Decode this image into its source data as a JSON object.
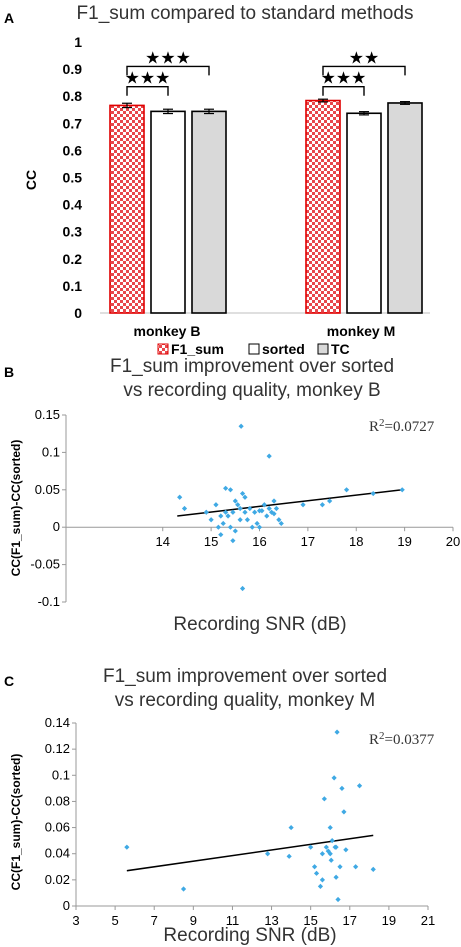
{
  "colors": {
    "bar_f1_fill": "#e8474c",
    "bar_f1_edge": "#e00000",
    "bar_sorted_fill": "#ffffff",
    "bar_tc_fill": "#d9d9d9",
    "bar_edge": "#000000",
    "scatter_point": "#3fa9e4",
    "trendline": "#000000"
  },
  "chart_data": [
    {
      "type": "bar",
      "panel": "A",
      "title": "F1_sum compared to standard methods",
      "ylabel": "CC",
      "xlabel": "",
      "categories": [
        "monkey B",
        "monkey M"
      ],
      "series": [
        {
          "name": "F1_sum",
          "values": [
            0.766,
            0.784
          ],
          "errors": [
            0.008,
            0.005
          ],
          "pattern": "red-checker"
        },
        {
          "name": "sorted",
          "values": [
            0.744,
            0.737
          ],
          "errors": [
            0.008,
            0.006
          ],
          "pattern": "white"
        },
        {
          "name": "TC",
          "values": [
            0.744,
            0.775
          ],
          "errors": [
            0.008,
            0.005
          ],
          "pattern": "gray"
        }
      ],
      "ylim": [
        0,
        1
      ],
      "yticks": [
        "0",
        "0.1",
        "0.2",
        "0.3",
        "0.4",
        "0.5",
        "0.6",
        "0.7",
        "0.8",
        "0.9",
        "1"
      ],
      "grid": false,
      "legend_position": "bottom",
      "significance": [
        {
          "category": 0,
          "from_series": 0,
          "to_series": 1,
          "label": "★★★",
          "level": 0.835
        },
        {
          "category": 0,
          "from_series": 0,
          "to_series": 2,
          "label": "★★★",
          "level": 0.91
        },
        {
          "category": 1,
          "from_series": 0,
          "to_series": 1,
          "label": "★★★",
          "level": 0.835
        },
        {
          "category": 1,
          "from_series": 0,
          "to_series": 2,
          "label": "★★",
          "level": 0.91
        }
      ]
    },
    {
      "type": "scatter",
      "panel": "B",
      "title": "F1_sum improvement over sorted",
      "subtitle": "vs recording quality, monkey B",
      "xlabel": "Recording SNR (dB)",
      "ylabel": "CC(F1_sum)-CC(sorted)",
      "xlim": [
        12,
        20
      ],
      "ylim": [
        -0.1,
        0.15
      ],
      "xticks": [
        "14",
        "15",
        "16",
        "17",
        "18",
        "19",
        "20"
      ],
      "yticks": [
        "-0.1",
        "-0.05",
        "0",
        "0.05",
        "0.1",
        "0.15"
      ],
      "grid": false,
      "r2_label": "R",
      "r2_sup": "2",
      "r2_value": "=0.0727",
      "trendline": {
        "x": [
          14.3,
          18.95
        ],
        "y": [
          0.015,
          0.05
        ]
      },
      "x": [
        14.35,
        14.45,
        14.9,
        15.0,
        15.1,
        15.15,
        15.2,
        15.25,
        15.3,
        15.35,
        15.4,
        15.45,
        15.5,
        15.55,
        15.6,
        15.62,
        15.65,
        15.7,
        15.75,
        15.8,
        15.85,
        15.9,
        15.95,
        16.0,
        16.05,
        16.1,
        16.15,
        16.2,
        16.25,
        16.3,
        16.35,
        16.4,
        16.45,
        15.2,
        15.4,
        15.5,
        15.6,
        15.7,
        16.2,
        16.3,
        15.65,
        15.45,
        16.9,
        17.3,
        17.45,
        17.8,
        18.35,
        18.95,
        16.0,
        15.3
      ],
      "y": [
        0.04,
        0.025,
        0.02,
        0.01,
        0.03,
        0.0,
        -0.01,
        0.005,
        0.052,
        0.015,
        0.05,
        0.02,
        -0.005,
        0.03,
        0.025,
        0.135,
        0.045,
        0.02,
        0.01,
        0.025,
        0.0,
        0.02,
        0.005,
        0.022,
        0.022,
        0.03,
        0.015,
        0.095,
        0.02,
        0.035,
        0.025,
        0.01,
        0.005,
        0.015,
        0.0,
        0.035,
        0.01,
        0.04,
        0.025,
        0.018,
        -0.082,
        -0.018,
        0.03,
        0.03,
        0.035,
        0.05,
        0.045,
        0.05,
        0.0,
        0.02
      ]
    },
    {
      "type": "scatter",
      "panel": "C",
      "title": "F1_sum improvement over sorted",
      "subtitle": "vs recording quality, monkey M",
      "xlabel": "Recording SNR (dB)",
      "ylabel": "CC(F1_sum)-CC(sorted)",
      "xlim": [
        3,
        21
      ],
      "ylim": [
        0,
        0.14
      ],
      "xticks": [
        "3",
        "5",
        "7",
        "9",
        "11",
        "13",
        "15",
        "17",
        "19",
        "21"
      ],
      "yticks": [
        "0",
        "0.02",
        "0.04",
        "0.06",
        "0.08",
        "0.1",
        "0.12",
        "0.14"
      ],
      "grid": false,
      "r2_label": "R",
      "r2_sup": "2",
      "r2_value": "=0.0377",
      "trendline": {
        "x": [
          5.6,
          18.2
        ],
        "y": [
          0.027,
          0.054
        ]
      },
      "x": [
        5.6,
        8.5,
        12.8,
        13.9,
        14.0,
        15.0,
        15.2,
        15.3,
        15.5,
        15.6,
        15.7,
        15.8,
        15.9,
        16.0,
        16.05,
        16.1,
        16.2,
        16.25,
        16.3,
        16.35,
        16.4,
        16.5,
        16.6,
        16.7,
        16.8,
        17.3,
        17.5,
        18.2,
        15.6,
        16.0,
        16.3
      ],
      "y": [
        0.045,
        0.013,
        0.04,
        0.038,
        0.06,
        0.045,
        0.03,
        0.025,
        0.015,
        0.04,
        0.082,
        0.045,
        0.042,
        0.06,
        0.035,
        0.05,
        0.098,
        0.045,
        0.022,
        0.133,
        0.005,
        0.03,
        0.09,
        0.072,
        0.043,
        0.03,
        0.092,
        0.028,
        0.02,
        0.04,
        0.045
      ]
    }
  ],
  "panels": {
    "a": {
      "letter": "A"
    },
    "b": {
      "letter": "B"
    },
    "c": {
      "letter": "C"
    }
  }
}
